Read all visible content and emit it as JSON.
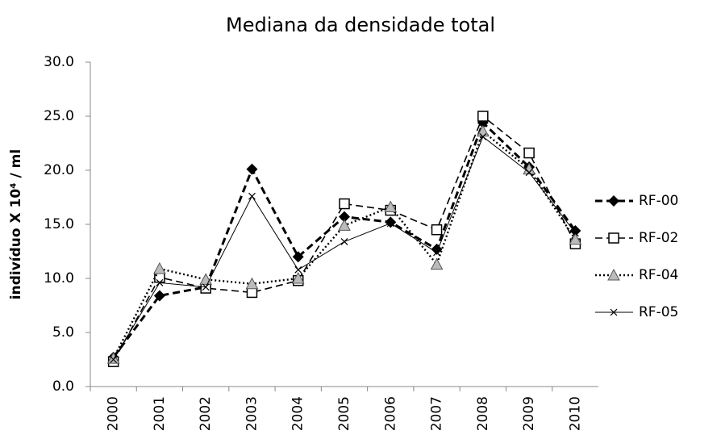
{
  "chart_data": {
    "type": "line",
    "title": "Mediana da densidade total",
    "y_label": "indivíduo X 10⁴ / ml",
    "categories": [
      "2000",
      "2001",
      "2002",
      "2003",
      "2004",
      "2005",
      "2006",
      "2007",
      "2008",
      "2009",
      "2010"
    ],
    "series": [
      {
        "name": "RF-00",
        "color": "#000000",
        "line_style": "dashed-bold",
        "marker": "diamond",
        "values": [
          2.7,
          8.4,
          9.2,
          20.1,
          12.0,
          15.7,
          15.2,
          12.7,
          24.4,
          20.3,
          14.4
        ]
      },
      {
        "name": "RF-02",
        "color": "#000000",
        "line_style": "dashed",
        "marker": "square",
        "values": [
          2.3,
          10.1,
          9.1,
          8.7,
          9.8,
          16.9,
          16.3,
          14.5,
          25.0,
          21.6,
          13.2
        ]
      },
      {
        "name": "RF-04",
        "color": "#000000",
        "line_style": "dotted",
        "marker": "triangle",
        "values": [
          2.6,
          10.9,
          9.9,
          9.5,
          10.0,
          14.9,
          16.6,
          11.3,
          23.6,
          20.1,
          13.6
        ]
      },
      {
        "name": "RF-05",
        "color": "#000000",
        "line_style": "solid-thin",
        "marker": "x",
        "values": [
          2.5,
          9.6,
          9.2,
          17.6,
          10.8,
          13.4,
          15.1,
          12.4,
          23.1,
          19.8,
          14.2
        ]
      }
    ],
    "ylim": [
      0,
      30
    ],
    "yticks": [
      {
        "value": 0,
        "label": "0.0"
      },
      {
        "value": 5,
        "label": "5.0"
      },
      {
        "value": 10,
        "label": "10.0"
      },
      {
        "value": 15,
        "label": "15.0"
      },
      {
        "value": 20,
        "label": "20.0"
      },
      {
        "value": 25,
        "label": "25.0"
      },
      {
        "value": 30,
        "label": "30.0"
      }
    ],
    "grid": false,
    "legend": "right"
  }
}
